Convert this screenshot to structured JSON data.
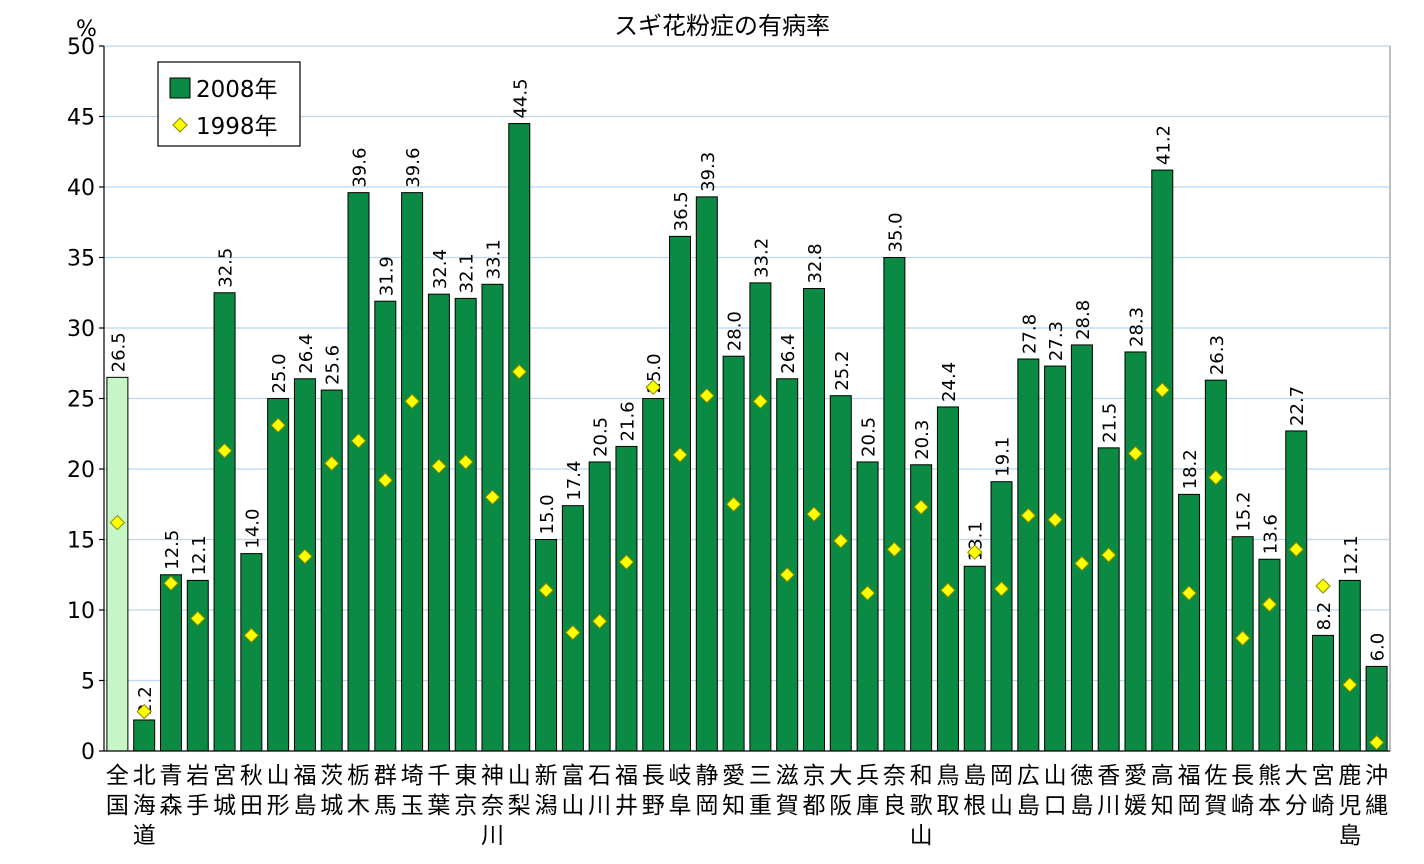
{
  "chart_data": {
    "type": "bar",
    "title": "スギ花粉症の有病率",
    "ylabel": "%",
    "xlabel": "",
    "ylim": [
      0,
      50
    ],
    "yticks": [
      0,
      5,
      10,
      15,
      20,
      25,
      30,
      35,
      40,
      45,
      50
    ],
    "grid": true,
    "legend_position": "top-left",
    "categories": [
      "全国",
      "北海道",
      "青森",
      "岩手",
      "宮城",
      "秋田",
      "山形",
      "福島",
      "茨城",
      "栃木",
      "群馬",
      "埼玉",
      "千葉",
      "東京",
      "神奈川",
      "山梨",
      "新潟",
      "富山",
      "石川",
      "福井",
      "長野",
      "岐阜",
      "静岡",
      "愛知",
      "三重",
      "滋賀",
      "京都",
      "大阪",
      "兵庫",
      "奈良",
      "和歌山",
      "鳥取",
      "島根",
      "岡山",
      "広島",
      "山口",
      "徳島",
      "香川",
      "愛媛",
      "高知",
      "福岡",
      "佐賀",
      "長崎",
      "熊本",
      "大分",
      "宮崎",
      "鹿児島",
      "沖縄"
    ],
    "series": [
      {
        "name": "2008年",
        "kind": "bar",
        "color": "#0a8a43",
        "highlight_color": "#c6f5c6",
        "value_labels": [
          "26.5",
          "2.2",
          "12.5",
          "12.1",
          "32.5",
          "14.0",
          "25.0",
          "26.4",
          "25.6",
          "39.6",
          "31.9",
          "39.6",
          "32.4",
          "32.1",
          "33.1",
          "44.5",
          "15.0",
          "17.4",
          "20.5",
          "21.6",
          "25.0",
          "36.5",
          "39.3",
          "28.0",
          "33.2",
          "26.4",
          "32.8",
          "25.2",
          "20.5",
          "35.0",
          "20.3",
          "24.4",
          "13.1",
          "19.1",
          "27.8",
          "27.3",
          "28.8",
          "21.5",
          "28.3",
          "41.2",
          "18.2",
          "26.3",
          "15.2",
          "13.6",
          "22.7",
          "8.2",
          "12.1",
          "6.0"
        ],
        "values": [
          26.5,
          2.2,
          12.5,
          12.1,
          32.5,
          14.0,
          25.0,
          26.4,
          25.6,
          39.6,
          31.9,
          39.6,
          32.4,
          32.1,
          33.1,
          44.5,
          15.0,
          17.4,
          20.5,
          21.6,
          25.0,
          36.5,
          39.3,
          28.0,
          33.2,
          26.4,
          32.8,
          25.2,
          20.5,
          35.0,
          20.3,
          24.4,
          13.1,
          19.1,
          27.8,
          27.3,
          28.8,
          21.5,
          28.3,
          41.2,
          18.2,
          26.3,
          15.2,
          13.6,
          22.7,
          8.2,
          12.1,
          6.0
        ]
      },
      {
        "name": "1998年",
        "kind": "marker",
        "color": "#ffff00",
        "values": [
          16.2,
          2.8,
          11.9,
          9.4,
          21.3,
          8.2,
          23.1,
          13.8,
          20.4,
          22.0,
          19.2,
          24.8,
          20.2,
          20.5,
          18.0,
          26.9,
          11.4,
          8.4,
          9.2,
          13.4,
          25.8,
          21.0,
          25.2,
          17.5,
          24.8,
          12.5,
          16.8,
          14.9,
          11.2,
          14.3,
          17.3,
          11.4,
          14.1,
          11.5,
          16.7,
          16.4,
          13.3,
          13.9,
          21.1,
          25.6,
          11.2,
          19.4,
          8.0,
          10.4,
          14.3,
          11.7,
          4.7,
          0.6
        ]
      }
    ]
  }
}
